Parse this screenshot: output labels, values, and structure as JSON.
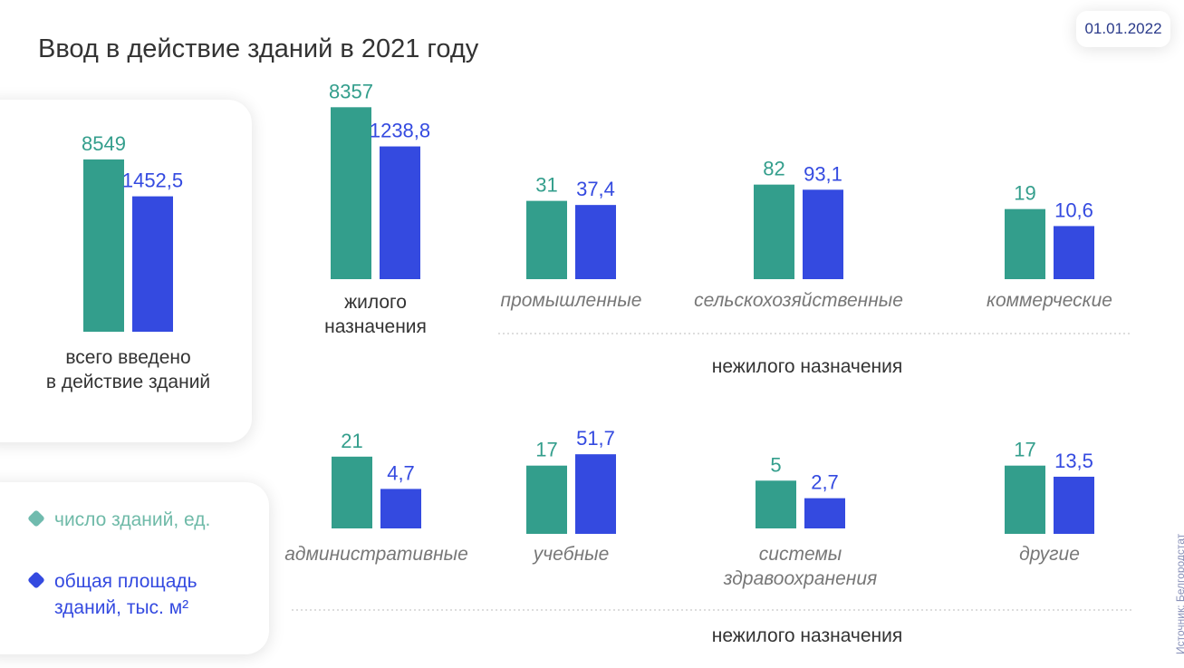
{
  "header": {
    "title": "Ввод в действие зданий в 2021 году",
    "date": "01.01.2022"
  },
  "chart_data": {
    "type": "bar",
    "log_scale": true,
    "categories": [
      [
        "всего введено",
        "в действие зданий"
      ],
      [
        "жилого",
        "назначения"
      ],
      [
        "промышленные"
      ],
      [
        "сельскохозяйственные"
      ],
      [
        "коммерческие"
      ],
      [
        "административные"
      ],
      [
        "учебные"
      ],
      [
        "системы",
        "здравоохранения"
      ],
      [
        "другие"
      ]
    ],
    "series": [
      {
        "name": "число зданий, ед.",
        "color": "#339e8c",
        "values": [
          8549,
          8357,
          31,
          82,
          19,
          21,
          17,
          5,
          17
        ],
        "value_labels": [
          "8549",
          "8357",
          "31",
          "82",
          "19",
          "21",
          "17",
          "5",
          "17"
        ]
      },
      {
        "name": "общая площадь зданий, тыс. м²",
        "color": "#344ae0",
        "values": [
          1452.5,
          1238.8,
          37.4,
          93.1,
          10.6,
          4.7,
          51.7,
          2.7,
          13.5
        ],
        "value_labels": [
          "1452,5",
          "1238,8",
          "37,4",
          "93,1",
          "10,6",
          "4,7",
          "51,7",
          "2,7",
          "13,5"
        ]
      }
    ],
    "group_labels": [
      "нежилого назначения",
      "нежилого назначения"
    ]
  },
  "source": "Источник: Белгородстат"
}
